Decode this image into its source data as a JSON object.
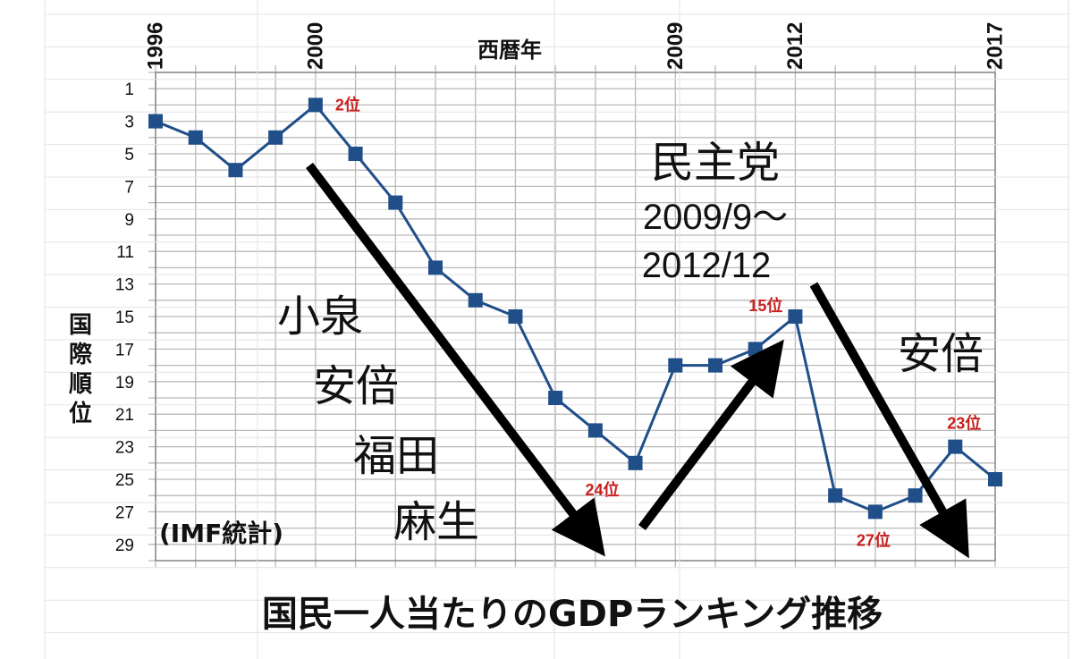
{
  "chart_data": {
    "type": "line",
    "xlabel": "西暦年",
    "ylabel": "国際順位",
    "x_tick_labels": [
      {
        "year": 1996,
        "label": "1996"
      },
      {
        "year": 2000,
        "label": "2000"
      },
      {
        "year": 2009,
        "label": "2009"
      },
      {
        "year": 2012,
        "label": "2012"
      },
      {
        "year": 2017,
        "label": "2017"
      }
    ],
    "y_tick_labels": [
      1,
      3,
      5,
      7,
      9,
      11,
      13,
      15,
      17,
      19,
      21,
      23,
      25,
      27,
      29
    ],
    "ylim": [
      1,
      30
    ],
    "y_inverted": true,
    "grid": true,
    "x": [
      1996,
      1997,
      1998,
      1999,
      2000,
      2001,
      2002,
      2003,
      2004,
      2005,
      2006,
      2007,
      2008,
      2009,
      2010,
      2011,
      2012,
      2013,
      2014,
      2015,
      2016,
      2017
    ],
    "series": [
      {
        "values": [
          3,
          4,
          6,
          4,
          2,
          5,
          8,
          12,
          14,
          15,
          20,
          22,
          24,
          18,
          18,
          17,
          15,
          26,
          27,
          26,
          23,
          25
        ],
        "color": "#1f4e89"
      }
    ],
    "annotations": [
      {
        "year": 2000,
        "rank": 2,
        "text": "2位"
      },
      {
        "year": 2008,
        "rank": 24,
        "text": "24位"
      },
      {
        "year": 2012,
        "rank": 15,
        "text": "15位"
      },
      {
        "year": 2014,
        "rank": 27,
        "text": "27位"
      },
      {
        "year": 2016,
        "rank": 23,
        "text": "23位"
      }
    ],
    "period_labels": [
      {
        "id": "koizumi",
        "lines": [
          "小泉",
          "安倍",
          "福田",
          "麻生"
        ]
      },
      {
        "id": "dpj",
        "lines": [
          "民主党",
          "2009/9～",
          "2012/12"
        ]
      },
      {
        "id": "abe",
        "lines": [
          "安倍"
        ]
      }
    ],
    "source_note": "(IMF統計)",
    "title": "国民一人当たりのGDPランキング推移",
    "colors": {
      "line": "#1f4e89",
      "rank_label": "#c8201e",
      "arrow": "#000000"
    }
  }
}
